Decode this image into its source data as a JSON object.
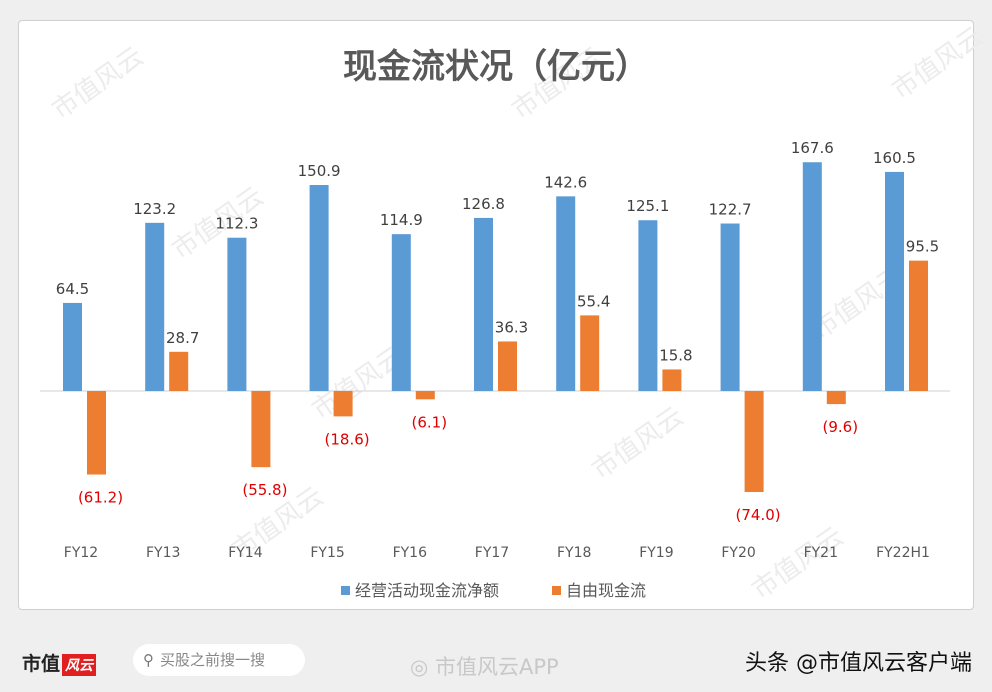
{
  "chart_data": {
    "type": "bar",
    "title": "现金流状况（亿元）",
    "categories": [
      "FY12",
      "FY13",
      "FY14",
      "FY15",
      "FY16",
      "FY17",
      "FY18",
      "FY19",
      "FY20",
      "FY21",
      "FY22H1"
    ],
    "series": [
      {
        "name": "经营活动现金流净额",
        "color": "#5b9bd5",
        "values": [
          64.5,
          123.2,
          112.3,
          150.9,
          114.9,
          126.8,
          142.6,
          125.1,
          122.7,
          167.6,
          160.5
        ],
        "labels": [
          "64.5",
          "123.2",
          "112.3",
          "150.9",
          "114.9",
          "126.8",
          "142.6",
          "125.1",
          "122.7",
          "167.6",
          "160.5"
        ]
      },
      {
        "name": "自由现金流",
        "color": "#ed7d31",
        "values": [
          -61.2,
          28.7,
          -55.8,
          -18.6,
          -6.1,
          36.3,
          55.4,
          15.8,
          -74.0,
          -9.6,
          95.5
        ],
        "labels": [
          "(61.2)",
          "28.7",
          "(55.8)",
          "(18.6)",
          "(6.1)",
          "36.3",
          "55.4",
          "15.8",
          "(74.0)",
          "(9.6)",
          "95.5"
        ]
      }
    ],
    "negative_label_color": "#e00000",
    "legend": "bottom",
    "grid": false
  },
  "watermark": "市值风云",
  "footer": {
    "logo_text": "市值",
    "logo_badge": "风云",
    "search_placeholder": "买股之前搜一搜",
    "weibo_text": "市值风云APP",
    "toutiao_text": "头条 @市值风云客户端"
  }
}
